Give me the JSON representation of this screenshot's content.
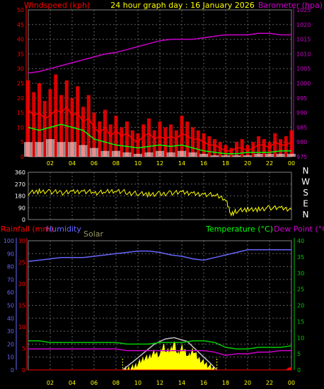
{
  "header": {
    "wind_label": "Windspeed (kph)",
    "title": "24 hour graph day : 16 January 2026",
    "baro_label": "Barometer (hpa)"
  },
  "lower_header": {
    "rain_label": "Rainfall (mm)",
    "humidity_label": "Humidity",
    "solar_label": "Solar",
    "temp_label": "Temperature (°C)",
    "dew_label": "Dew Point (°C)"
  },
  "compass": [
    "N",
    "W",
    "S",
    "E",
    "N"
  ],
  "colors": {
    "wind": "#ff0000",
    "gust_bars": "#ff0000",
    "baro": "#cc00cc",
    "wind_avg_green": "#00ff00",
    "wind_avg_white": "#ffffff",
    "direction": "#ffff00",
    "humidity": "#6666ff",
    "temperature": "#00cc00",
    "dewpoint": "#cc00cc",
    "rain": "#ff0000",
    "solar": "#ffff00",
    "solar_max": "#c0c0c0",
    "grid": "#606060",
    "axis": "#808080",
    "title": "#ffff00"
  },
  "chart_data": [
    {
      "id": "wind_baro",
      "type": "line",
      "x_ticks": [
        "02",
        "04",
        "06",
        "08",
        "10",
        "12",
        "14",
        "16",
        "18",
        "20",
        "22",
        "00"
      ],
      "xlim": [
        0,
        24
      ],
      "left_axis": {
        "ylim": [
          0,
          50
        ],
        "ticks": [
          "0",
          "5",
          "10",
          "15",
          "20",
          "25",
          "30",
          "35",
          "40",
          "45",
          "50"
        ]
      },
      "right_axis": {
        "ylim": [
          975,
          1025
        ],
        "ticks": [
          "975",
          "980",
          "985",
          "990",
          "995",
          "1000",
          "1005",
          "1010",
          "1015",
          "1020",
          "1025"
        ]
      },
      "series": [
        {
          "key": "gust",
          "axis": "left",
          "x": [
            0,
            0.5,
            1,
            1.5,
            2,
            2.5,
            3,
            3.5,
            4,
            4.5,
            5,
            5.5,
            6,
            6.5,
            7,
            7.5,
            8,
            8.5,
            9,
            9.5,
            10,
            10.5,
            11,
            11.5,
            12,
            12.5,
            13,
            13.5,
            14,
            14.5,
            15,
            15.5,
            16,
            16.5,
            17,
            17.5,
            18,
            18.5,
            19,
            19.5,
            20,
            20.5,
            21,
            21.5,
            22,
            22.5,
            23,
            23.5,
            24
          ],
          "values": [
            26,
            22,
            25,
            19,
            23,
            28,
            21,
            26,
            20,
            24,
            17,
            21,
            15,
            12,
            16,
            11,
            14,
            10,
            12,
            9,
            8,
            11,
            13,
            9,
            12,
            10,
            11,
            9,
            14,
            12,
            10,
            9,
            8,
            7,
            6,
            5,
            4,
            3,
            5,
            6,
            4,
            5,
            7,
            6,
            5,
            8,
            6,
            7,
            9
          ]
        },
        {
          "key": "avg",
          "axis": "left",
          "x": [
            0,
            0.5,
            1,
            1.5,
            2,
            2.5,
            3,
            3.5,
            4,
            4.5,
            5,
            5.5,
            6,
            6.5,
            7,
            7.5,
            8,
            8.5,
            9,
            9.5,
            10,
            10.5,
            11,
            11.5,
            12,
            12.5,
            13,
            13.5,
            14,
            14.5,
            15,
            15.5,
            16,
            16.5,
            17,
            17.5,
            18,
            18.5,
            19,
            19.5,
            20,
            20.5,
            21,
            21.5,
            22,
            22.5,
            23,
            23.5,
            24
          ],
          "values": [
            16,
            14,
            15,
            13,
            14,
            16,
            15,
            17,
            14,
            15,
            12,
            13,
            10,
            8,
            10,
            7,
            9,
            7,
            8,
            6,
            5,
            7,
            8,
            6,
            7,
            6,
            7,
            6,
            8,
            7,
            6,
            6,
            5,
            4,
            4,
            3,
            2,
            2,
            3,
            3,
            2,
            3,
            4,
            4,
            3,
            5,
            4,
            4,
            5
          ]
        },
        {
          "key": "wind_green",
          "axis": "left",
          "x": [
            0,
            1,
            2,
            3,
            4,
            5,
            6,
            7,
            8,
            9,
            10,
            11,
            12,
            13,
            14,
            15,
            16,
            17,
            18,
            19,
            20,
            21,
            22,
            23,
            24
          ],
          "values": [
            10,
            9,
            10,
            11,
            10,
            9,
            6,
            5,
            4,
            3.5,
            3,
            3.5,
            4,
            3.5,
            4,
            3,
            2,
            1.5,
            1,
            1,
            1.5,
            1.5,
            1.5,
            2,
            2
          ]
        },
        {
          "key": "wind_white",
          "axis": "left",
          "x": [
            0,
            1,
            2,
            3,
            4,
            5,
            6,
            7,
            8,
            9,
            10,
            11,
            12,
            13,
            14,
            15,
            16,
            17,
            18,
            19,
            20,
            21,
            22,
            23,
            24
          ],
          "values": [
            5,
            5,
            6,
            5,
            5,
            4,
            3,
            2,
            2,
            1.5,
            1,
            1.5,
            2,
            1.5,
            2,
            1.5,
            1,
            0.5,
            0.5,
            0.5,
            0.5,
            1,
            1,
            1,
            1
          ]
        },
        {
          "key": "baro",
          "axis": "right",
          "x": [
            0,
            1,
            2,
            3,
            4,
            5,
            6,
            7,
            8,
            9,
            10,
            11,
            12,
            13,
            14,
            15,
            16,
            17,
            18,
            19,
            20,
            21,
            22,
            23,
            24
          ],
          "values": [
            1003.5,
            1004,
            1005,
            1006,
            1007,
            1008,
            1009,
            1010,
            1010.5,
            1011.5,
            1012.5,
            1013.5,
            1014.5,
            1015,
            1015,
            1015,
            1015.5,
            1016,
            1016.5,
            1016.5,
            1016.5,
            1017,
            1017,
            1016.5,
            1016.5
          ]
        }
      ]
    },
    {
      "id": "wind_direction",
      "type": "line",
      "xlim": [
        0,
        24
      ],
      "ylim": [
        0,
        360
      ],
      "y_ticks": [
        "0",
        "90",
        "180",
        "270",
        "360"
      ],
      "series": [
        {
          "key": "direction",
          "x": [
            0,
            1,
            2,
            3,
            4,
            5,
            6,
            7,
            8,
            9,
            10,
            11,
            12,
            13,
            14,
            15,
            16,
            17,
            18,
            18.5,
            19,
            20,
            21,
            22,
            23,
            24
          ],
          "values": [
            205,
            215,
            210,
            205,
            210,
            215,
            205,
            210,
            220,
            205,
            200,
            190,
            195,
            205,
            205,
            200,
            195,
            185,
            155,
            45,
            65,
            75,
            80,
            90,
            85,
            75
          ]
        }
      ]
    },
    {
      "id": "temp_hum",
      "type": "line",
      "x_ticks": [
        "02",
        "04",
        "06",
        "08",
        "10",
        "12",
        "14",
        "16",
        "18",
        "20",
        "22",
        "00"
      ],
      "xlim": [
        0,
        24
      ],
      "left_outer": {
        "ylim": [
          0,
          100
        ],
        "ticks": [
          "0",
          "10",
          "20",
          "30",
          "40",
          "50",
          "60",
          "70",
          "80",
          "90",
          "100"
        ]
      },
      "left_inner": {
        "ylim": [
          0,
          30
        ],
        "ticks": [
          "0",
          "5",
          "10",
          "15",
          "20",
          "25",
          "30"
        ]
      },
      "right_axis": {
        "ylim": [
          0,
          40
        ],
        "ticks": [
          "0",
          "5",
          "10",
          "15",
          "20",
          "25",
          "30",
          "35",
          "40"
        ]
      },
      "series": [
        {
          "key": "humidity",
          "axis": "left_outer",
          "x": [
            0,
            1,
            2,
            3,
            4,
            5,
            6,
            7,
            8,
            9,
            10,
            11,
            12,
            13,
            14,
            15,
            16,
            17,
            18,
            19,
            20,
            21,
            22,
            23,
            24
          ],
          "values": [
            84,
            85,
            86,
            87,
            87,
            87,
            88,
            89,
            90,
            91,
            92,
            92,
            91,
            89,
            88,
            86,
            85,
            87,
            89,
            91,
            93,
            93,
            93,
            93,
            93
          ]
        },
        {
          "key": "temperature",
          "axis": "right",
          "x": [
            0,
            1,
            2,
            3,
            4,
            5,
            6,
            7,
            8,
            9,
            10,
            11,
            12,
            13,
            14,
            15,
            16,
            17,
            18,
            19,
            20,
            21,
            22,
            23,
            24
          ],
          "values": [
            9,
            9,
            8.5,
            8.5,
            8.5,
            8.5,
            8.5,
            8.5,
            8.5,
            8,
            8,
            8,
            8.5,
            8.5,
            8.5,
            9,
            9,
            8.5,
            7,
            6.5,
            6.5,
            7,
            7,
            7,
            7.5
          ]
        },
        {
          "key": "dewpoint",
          "axis": "right",
          "x": [
            0,
            1,
            2,
            3,
            4,
            5,
            6,
            7,
            8,
            9,
            10,
            11,
            12,
            13,
            14,
            15,
            16,
            17,
            18,
            19,
            20,
            21,
            22,
            23,
            24
          ],
          "values": [
            6.5,
            6.5,
            6.5,
            6.5,
            6.5,
            6.5,
            6.5,
            6.5,
            6.5,
            6,
            6,
            6,
            6,
            6,
            6,
            6,
            6,
            5.5,
            4.5,
            5,
            5,
            5.5,
            5.5,
            6,
            6
          ]
        },
        {
          "key": "solar_max",
          "axis": "left_outer",
          "x": [
            8.6,
            9.5,
            10.5,
            11.5,
            12.5,
            13.3,
            14.5,
            15.5,
            16.5,
            17.2
          ],
          "values": [
            0,
            6,
            13,
            20,
            24,
            25,
            22,
            14,
            6,
            0
          ]
        },
        {
          "key": "solar",
          "axis": "left_outer",
          "x": [
            8.6,
            9,
            9.5,
            10,
            10.5,
            11,
            11.5,
            12,
            12.3,
            12.6,
            13,
            13.3,
            13.6,
            14,
            14.3,
            14.6,
            15,
            15.5,
            16,
            16.5,
            17,
            17.2
          ],
          "values": [
            0,
            1,
            2,
            5,
            9,
            10,
            14,
            11,
            20,
            14,
            16,
            22,
            12,
            18,
            15,
            10,
            16,
            9,
            6,
            3,
            1,
            0
          ]
        },
        {
          "key": "rain",
          "axis": "left_inner",
          "x": [
            0,
            23.5,
            23.8,
            24
          ],
          "values": [
            0,
            0,
            0.5,
            0.5
          ]
        }
      ]
    }
  ]
}
